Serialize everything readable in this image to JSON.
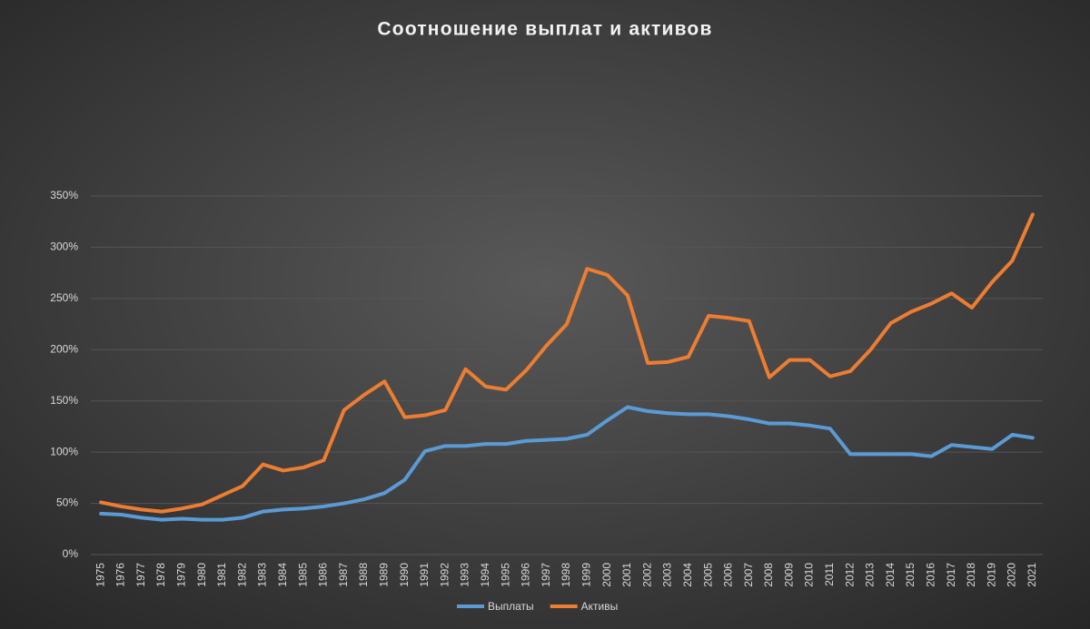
{
  "chart_data": {
    "type": "line",
    "title": "Соотношение выплат и активов",
    "categories": [
      "1975",
      "1976",
      "1977",
      "1978",
      "1979",
      "1980",
      "1981",
      "1982",
      "1983",
      "1984",
      "1985",
      "1986",
      "1987",
      "1988",
      "1989",
      "1990",
      "1991",
      "1992",
      "1993",
      "1994",
      "1995",
      "1996",
      "1997",
      "1998",
      "1999",
      "2000",
      "2001",
      "2002",
      "2003",
      "2004",
      "2005",
      "2006",
      "2007",
      "2008",
      "2009",
      "2010",
      "2011",
      "2012",
      "2013",
      "2014",
      "2015",
      "2016",
      "2017",
      "2018",
      "2019",
      "2020",
      "2021"
    ],
    "series": [
      {
        "name": "Выплаты",
        "color": "#5b9bd5",
        "values": [
          40,
          39,
          36,
          34,
          35,
          34,
          34,
          36,
          42,
          44,
          45,
          47,
          50,
          54,
          60,
          73,
          101,
          106,
          106,
          108,
          108,
          111,
          112,
          113,
          117,
          131,
          144,
          140,
          138,
          137,
          137,
          135,
          132,
          128,
          128,
          126,
          123,
          98,
          98,
          98,
          98,
          96,
          107,
          105,
          103,
          117,
          114
        ]
      },
      {
        "name": "Активы",
        "color": "#ed7d31",
        "values": [
          51,
          47,
          44,
          42,
          45,
          49,
          58,
          67,
          88,
          82,
          85,
          92,
          141,
          156,
          169,
          134,
          136,
          141,
          181,
          164,
          161,
          180,
          204,
          225,
          279,
          273,
          253,
          187,
          188,
          193,
          233,
          231,
          228,
          173,
          190,
          190,
          174,
          179,
          200,
          226,
          237,
          245,
          255,
          241,
          266,
          287,
          332
        ]
      }
    ],
    "ylim": [
      0,
      350
    ],
    "yticks": [
      {
        "value": 0,
        "label": "0%"
      },
      {
        "value": 50,
        "label": "50%"
      },
      {
        "value": 100,
        "label": "100%"
      },
      {
        "value": 150,
        "label": "150%"
      },
      {
        "value": 200,
        "label": "200%"
      },
      {
        "value": 250,
        "label": "250%"
      },
      {
        "value": 300,
        "label": "300%"
      },
      {
        "value": 350,
        "label": "350%"
      }
    ],
    "grid": true,
    "legend": "bottom"
  }
}
